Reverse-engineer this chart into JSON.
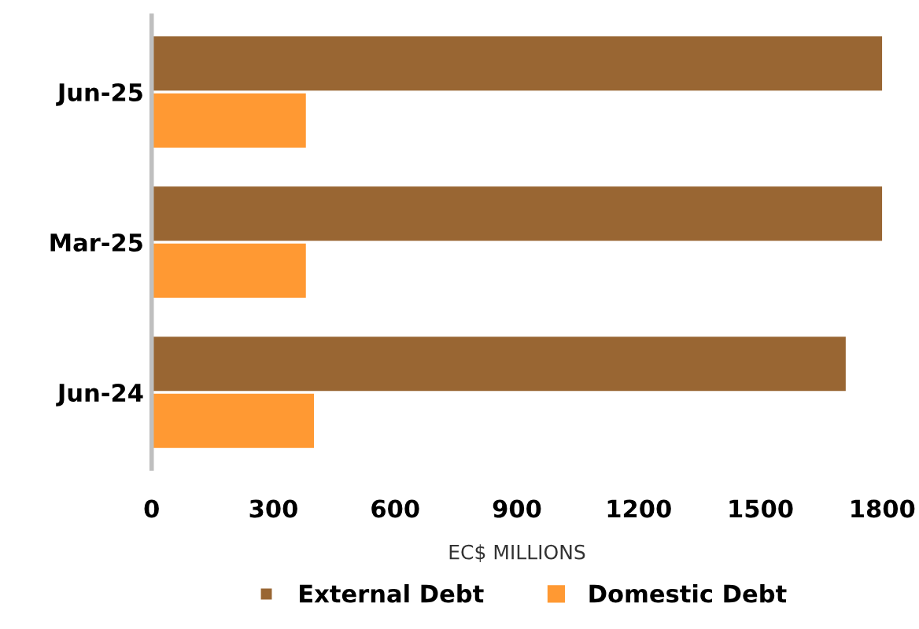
{
  "chart_data": {
    "type": "bar",
    "orientation": "horizontal",
    "categories": [
      "Jun-25",
      "Mar-25",
      "Jun-24"
    ],
    "series": [
      {
        "name": "External Debt",
        "color": "#996633",
        "values": [
          1800,
          1800,
          1710
        ]
      },
      {
        "name": "Domestic Debt",
        "color": "#ff9933",
        "values": [
          380,
          380,
          400
        ]
      }
    ],
    "xlabel": "EC$ MILLIONS",
    "xlim": [
      0,
      1800
    ],
    "xticks": [
      0,
      300,
      600,
      900,
      1200,
      1500,
      1800
    ],
    "grid": false,
    "legend": "bottom",
    "marker": "square"
  }
}
